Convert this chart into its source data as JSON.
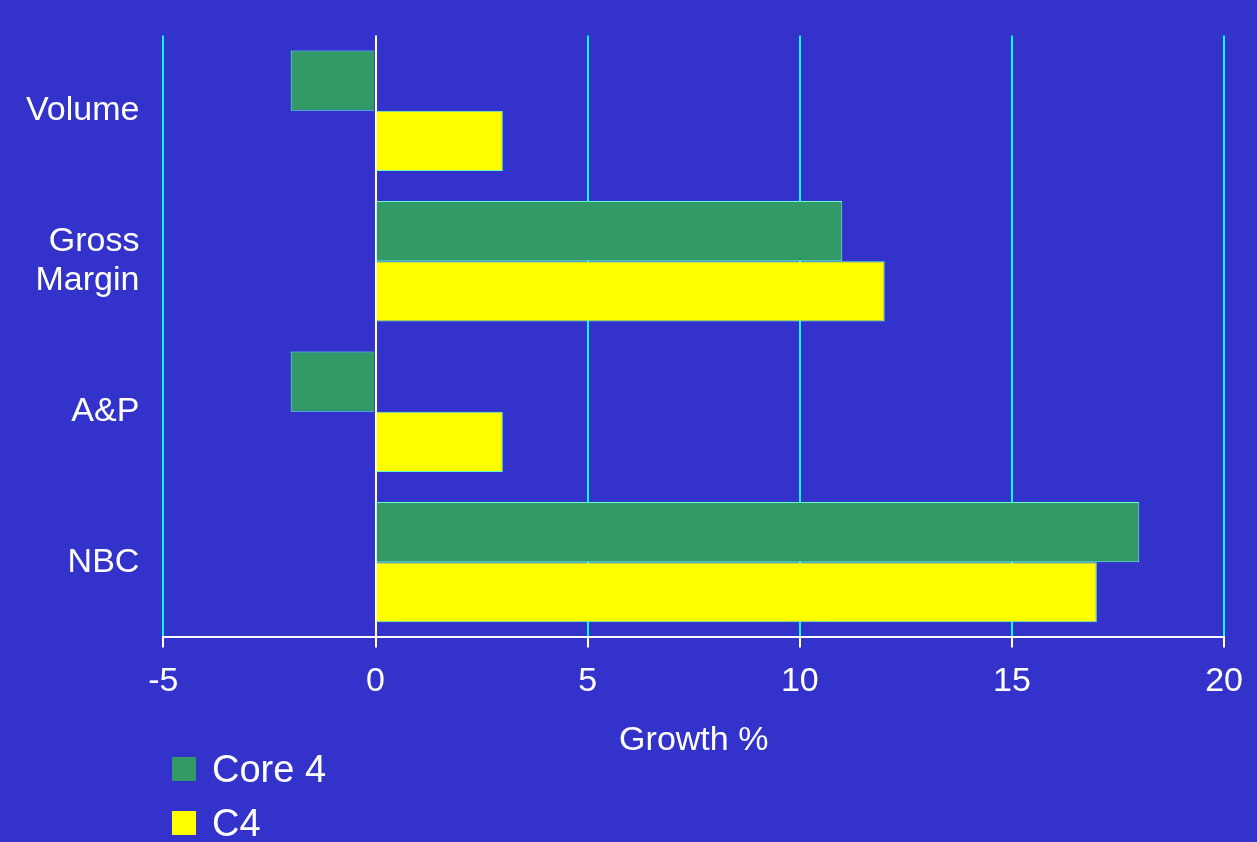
{
  "chart_data": {
    "type": "bar",
    "orientation": "horizontal",
    "xlabel": "Growth %",
    "categories": [
      "Volume",
      "Gross\nMargin",
      "A&P",
      "NBC"
    ],
    "series": [
      {
        "name": "Core 4",
        "color": "#339966",
        "values": [
          -2,
          11,
          -2,
          18
        ]
      },
      {
        "name": "C4",
        "color": "#ffff00",
        "values": [
          3,
          12,
          3,
          17
        ]
      }
    ],
    "xlim": [
      -5,
      20
    ],
    "xticks": [
      -5,
      0,
      5,
      10,
      15,
      20
    ],
    "grid": "x",
    "legend": "bottom left"
  }
}
